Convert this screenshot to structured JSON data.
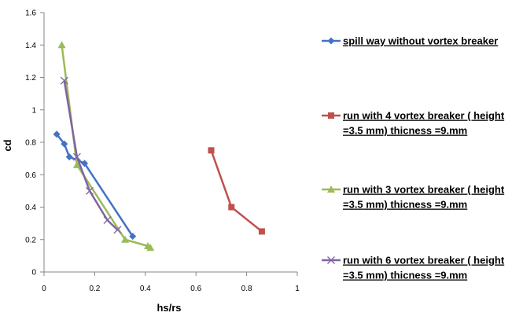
{
  "chart_data": {
    "type": "line",
    "xlabel": "hs/rs",
    "ylabel": "cd",
    "xlim": [
      0,
      1
    ],
    "ylim": [
      0,
      1.6
    ],
    "x_ticks": [
      "0",
      "0.2",
      "0.4",
      "0.6",
      "0.8",
      "1"
    ],
    "y_ticks": [
      "0",
      "0.2",
      "0.4",
      "0.6",
      "0.8",
      "1",
      "1.2",
      "1.4",
      "1.6"
    ],
    "grid": false,
    "legend_position": "right",
    "series": [
      {
        "name_lines": [
          "spill way without vortex breaker"
        ],
        "color": "#4472C4",
        "marker": "diamond",
        "x": [
          0.05,
          0.08,
          0.1,
          0.16,
          0.35
        ],
        "y": [
          0.85,
          0.79,
          0.71,
          0.67,
          0.22
        ]
      },
      {
        "name_lines": [
          "run with 4 vortex breaker ( height",
          "=3.5 mm) thicness =9.mm"
        ],
        "color": "#C0504D",
        "marker": "square",
        "x": [
          0.66,
          0.74,
          0.86
        ],
        "y": [
          0.75,
          0.4,
          0.25
        ]
      },
      {
        "name_lines": [
          "run with 3 vortex breaker ( height",
          "=3.5 mm) thicness =9.mm"
        ],
        "color": "#9BBB59",
        "marker": "triangle",
        "x": [
          0.07,
          0.13,
          0.32,
          0.41,
          0.42
        ],
        "y": [
          1.4,
          0.66,
          0.2,
          0.16,
          0.15
        ]
      },
      {
        "name_lines": [
          "run with 6 vortex breaker ( height",
          "=3.5 mm) thicness =9.mm"
        ],
        "color": "#8064A2",
        "marker": "x",
        "x": [
          0.08,
          0.13,
          0.18,
          0.25,
          0.29
        ],
        "y": [
          1.18,
          0.71,
          0.5,
          0.32,
          0.26
        ]
      }
    ]
  }
}
